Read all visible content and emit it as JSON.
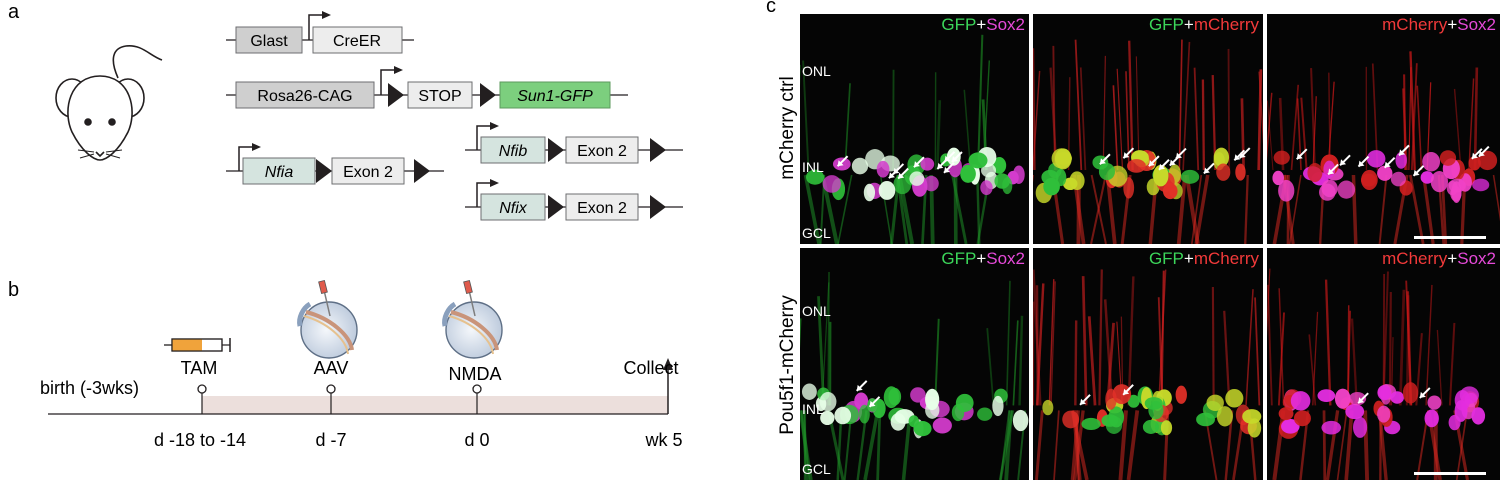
{
  "panel_labels": {
    "a": "a",
    "b": "b",
    "c": "c"
  },
  "genetics": {
    "row1": [
      "Glast",
      "CreER"
    ],
    "row2": [
      "Rosa26-CAG",
      "STOP",
      "Sun1-GFP"
    ],
    "nfia": [
      "Nfia",
      "Exon 2"
    ],
    "nfib": [
      "Nfib",
      "Exon 2"
    ],
    "nfix": [
      "Nfix",
      "Exon 2"
    ]
  },
  "timeline": {
    "start": "birth (-3wks)",
    "events": [
      {
        "label": "TAM",
        "time": "d -18 to -14"
      },
      {
        "label": "AAV",
        "time": "d -7"
      },
      {
        "label": "NMDA",
        "time": "d 0"
      },
      {
        "label": "Collect",
        "time": "wk 5"
      }
    ]
  },
  "micrographs": {
    "rows": [
      "mCherry ctrl",
      "Pou5f1-mCherry"
    ],
    "layers": [
      "ONL",
      "INL",
      "GCL"
    ],
    "row1_titles": [
      [
        {
          "t": "GFP",
          "c": "#3cd65a"
        },
        {
          "t": "+",
          "c": "#ffffff"
        },
        {
          "t": "Sox2",
          "c": "#e64ad9"
        }
      ],
      [
        {
          "t": "GFP",
          "c": "#3cd65a"
        },
        {
          "t": "+",
          "c": "#ffffff"
        },
        {
          "t": "mCherry",
          "c": "#f23a3a"
        }
      ],
      [
        {
          "t": "mCherry",
          "c": "#f23a3a"
        },
        {
          "t": "+",
          "c": "#ffffff"
        },
        {
          "t": "Sox2",
          "c": "#e64ad9"
        }
      ]
    ],
    "row2_titles": [
      [
        {
          "t": "GFP",
          "c": "#3cd65a"
        },
        {
          "t": "+",
          "c": "#ffffff"
        },
        {
          "t": "Sox2",
          "c": "#e64ad9"
        }
      ],
      [
        {
          "t": "GFP",
          "c": "#3cd65a"
        },
        {
          "t": "+",
          "c": "#ffffff"
        },
        {
          "t": "mCherry",
          "c": "#f23a3a"
        }
      ],
      [
        {
          "t": "mCherry",
          "c": "#f23a3a"
        },
        {
          "t": "+",
          "c": "#ffffff"
        },
        {
          "t": "Sox2",
          "c": "#e64ad9"
        }
      ]
    ]
  }
}
